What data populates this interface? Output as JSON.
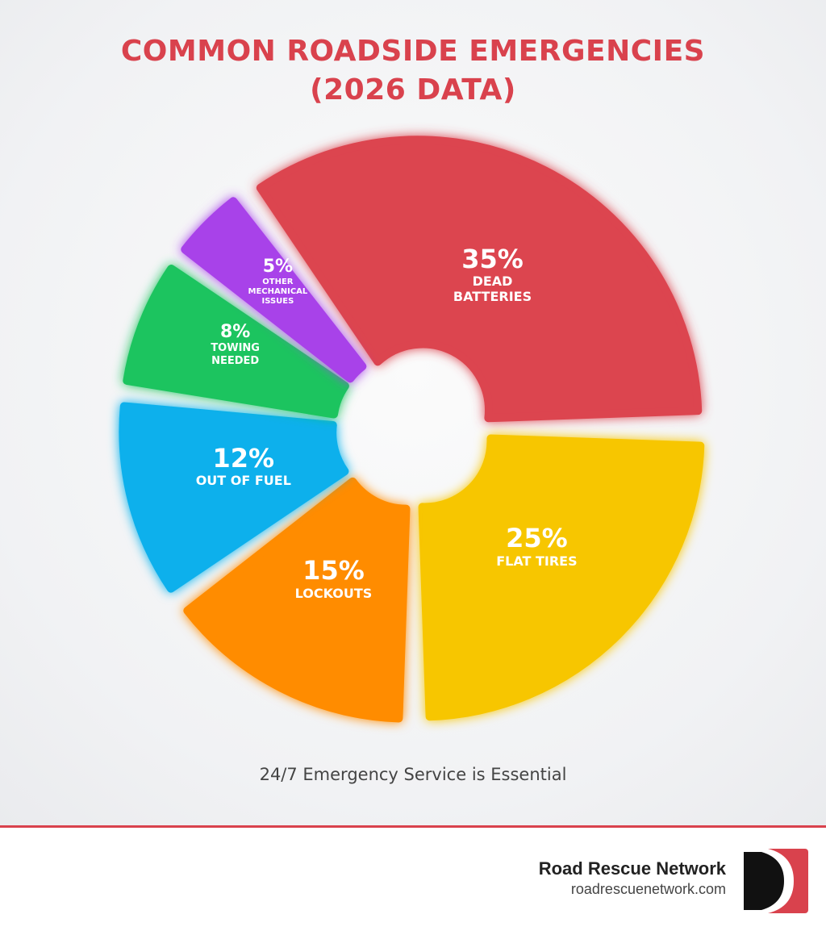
{
  "chart_data": {
    "type": "donut",
    "title": "COMMON ROADSIDE EMERGENCIES (2026 DATA)",
    "categories": [
      "DEAD BATTERIES",
      "FLAT TIRES",
      "LOCKOUTS",
      "OUT OF FUEL",
      "TOWING NEEDED",
      "OTHER MECHANICAL ISSUES"
    ],
    "values": [
      35,
      25,
      15,
      12,
      8,
      5
    ],
    "value_labels": [
      "35%",
      "25%",
      "15%",
      "12%",
      "8%",
      "5%"
    ],
    "colors": [
      "#dc4450",
      "#f7c600",
      "#ff8c05",
      "#0cb0ec",
      "#1fc45f",
      "#a843e9"
    ]
  },
  "tagline": "24/7 Emergency Service is Essential",
  "footer": {
    "brand": "Road Rescue Network",
    "url": "roadrescuenetwork.com"
  }
}
